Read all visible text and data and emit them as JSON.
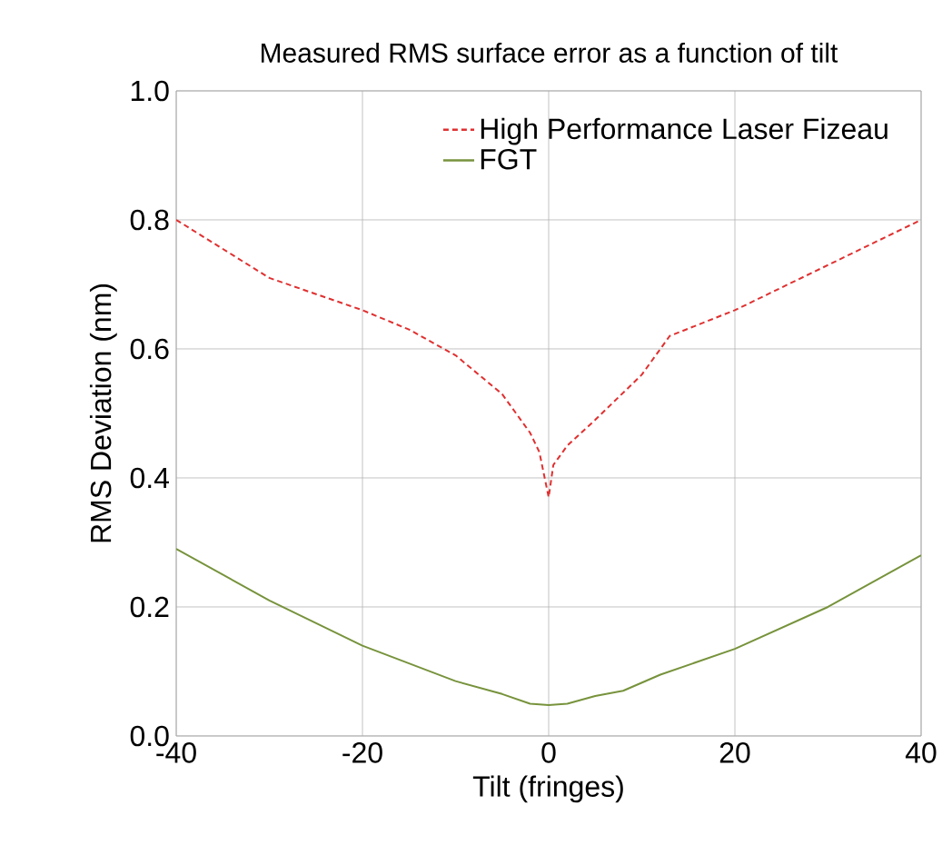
{
  "chart_data": {
    "type": "line",
    "title": "Measured RMS surface error as a function of tilt",
    "xlabel": "Tilt (fringes)",
    "ylabel": "RMS Deviation (nm)",
    "xlim": [
      -40,
      40
    ],
    "xticks": [
      -40,
      -20,
      0,
      20,
      40
    ],
    "ylim": [
      0,
      1
    ],
    "yticks": [
      {
        "value": 0,
        "label": "0.0"
      },
      {
        "value": 0.2,
        "label": "0.2"
      },
      {
        "value": 0.4,
        "label": "0.4"
      },
      {
        "value": 0.6,
        "label": "0.6"
      },
      {
        "value": 0.8,
        "label": "0.8"
      },
      {
        "value": 1,
        "label": "1.0"
      }
    ],
    "grid": true,
    "legend": "top right",
    "marker": "none",
    "series": [
      {
        "name": "High Performance Laser Fizeau",
        "color": "#e03030",
        "line_style": "dashed",
        "x": [
          -40,
          -30,
          -20,
          -15,
          -10,
          -5,
          -2,
          -1,
          0,
          0.5,
          2,
          5,
          10,
          13,
          20,
          30,
          40
        ],
        "values": [
          0.8,
          0.71,
          0.66,
          0.63,
          0.59,
          0.53,
          0.47,
          0.44,
          0.37,
          0.42,
          0.45,
          0.49,
          0.56,
          0.62,
          0.66,
          0.73,
          0.8
        ]
      },
      {
        "name": "FGT",
        "color": "#77933c",
        "line_style": "solid",
        "x": [
          -40,
          -30,
          -20,
          -10,
          -5,
          -2,
          0,
          2,
          5,
          8,
          12,
          20,
          30,
          40
        ],
        "values": [
          0.29,
          0.21,
          0.14,
          0.085,
          0.065,
          0.05,
          0.048,
          0.05,
          0.062,
          0.07,
          0.095,
          0.135,
          0.2,
          0.28
        ]
      }
    ]
  }
}
